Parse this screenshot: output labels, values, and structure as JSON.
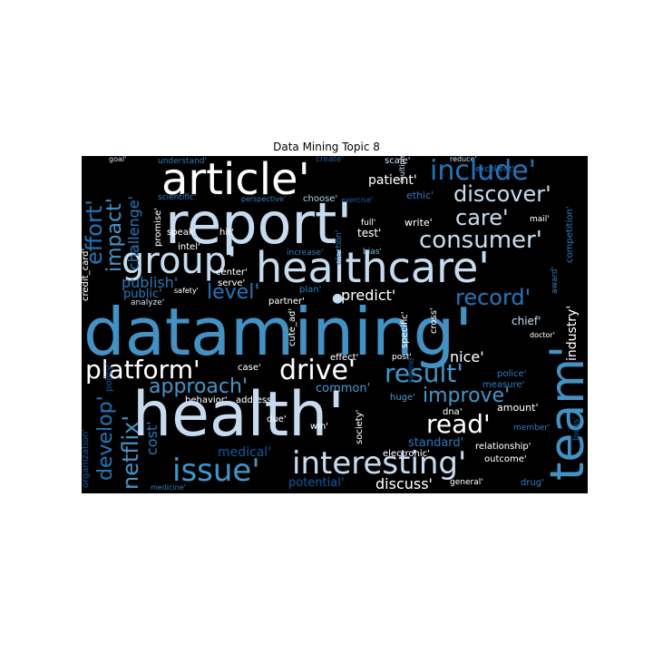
{
  "title": "Data Mining Topic 8",
  "colors": {
    "white": "#ffffff",
    "pale": "#c6dbef",
    "light": "#9ecae1",
    "mid": "#6baed6",
    "blue": "#4292c6",
    "deep": "#2171b5",
    "navy": "#08519c",
    "dark": "#08306b"
  },
  "words": [
    {
      "text": "goal'"
    },
    {
      "text": "understand'"
    },
    {
      "text": "create'"
    },
    {
      "text": "scale'"
    },
    {
      "text": "reduce'"
    },
    {
      "text": "excellent'"
    },
    {
      "text": "article'"
    },
    {
      "text": "include'"
    },
    {
      "text": "patient'"
    },
    {
      "text": "discover'"
    },
    {
      "text": "scientific'"
    },
    {
      "text": "perspective'"
    },
    {
      "text": "choose'"
    },
    {
      "text": "exercise'"
    },
    {
      "text": "ethic'"
    },
    {
      "text": "report'"
    },
    {
      "text": "care'"
    },
    {
      "text": "full'"
    },
    {
      "text": "write'"
    },
    {
      "text": "mail'"
    },
    {
      "text": "speak'"
    },
    {
      "text": "hit'"
    },
    {
      "text": "test'"
    },
    {
      "text": "consumer'"
    },
    {
      "text": "intel'"
    },
    {
      "text": "increase'"
    },
    {
      "text": "bias'"
    },
    {
      "text": "group'"
    },
    {
      "text": "healthcare'"
    },
    {
      "text": "center'"
    },
    {
      "text": "serve'"
    },
    {
      "text": "publish'"
    },
    {
      "text": "safety'"
    },
    {
      "text": "plan'"
    },
    {
      "text": "public'"
    },
    {
      "text": "level'"
    },
    {
      "text": "partner'"
    },
    {
      "text": "predict'"
    },
    {
      "text": "record'"
    },
    {
      "text": "analyze'"
    },
    {
      "text": "datamining'"
    },
    {
      "text": "chief'"
    },
    {
      "text": "doctor'"
    },
    {
      "text": "effect'"
    },
    {
      "text": "post'"
    },
    {
      "text": "platform'"
    },
    {
      "text": "case'"
    },
    {
      "text": "drive'"
    },
    {
      "text": "nice'"
    },
    {
      "text": "result'"
    },
    {
      "text": "police'"
    },
    {
      "text": "measure'"
    },
    {
      "text": "approach'"
    },
    {
      "text": "common'"
    },
    {
      "text": "improve'"
    },
    {
      "text": "behavior'"
    },
    {
      "text": "address'"
    },
    {
      "text": "huge'"
    },
    {
      "text": "amount'"
    },
    {
      "text": "health'"
    },
    {
      "text": "dna'"
    },
    {
      "text": "member'"
    },
    {
      "text": "due'"
    },
    {
      "text": "read'"
    },
    {
      "text": "win'"
    },
    {
      "text": "standard'"
    },
    {
      "text": "medical'"
    },
    {
      "text": "relationship'"
    },
    {
      "text": "electronic'"
    },
    {
      "text": "outcome'"
    },
    {
      "text": "issue'"
    },
    {
      "text": "interesting'"
    },
    {
      "text": "potential'"
    },
    {
      "text": "discuss'"
    },
    {
      "text": "general'"
    },
    {
      "text": "drug'"
    },
    {
      "text": "medicine'"
    },
    {
      "text": "team'"
    },
    {
      "text": "effort'"
    },
    {
      "text": "impact'"
    },
    {
      "text": "challenge'"
    },
    {
      "text": "promise'"
    },
    {
      "text": "credit_card'"
    },
    {
      "text": "netflix'"
    },
    {
      "text": "develop'"
    },
    {
      "text": "cost'"
    },
    {
      "text": "organization'"
    },
    {
      "text": "policy'"
    },
    {
      "text": "cute_ad'"
    },
    {
      "text": "society'"
    },
    {
      "text": "specific'"
    },
    {
      "text": "cross'"
    },
    {
      "text": "industry'"
    },
    {
      "text": "competition'"
    },
    {
      "text": "award'"
    },
    {
      "text": "focus'"
    },
    {
      "text": "multiple'"
    },
    {
      "text": "sound'"
    },
    {
      "text": "election'"
    }
  ]
}
